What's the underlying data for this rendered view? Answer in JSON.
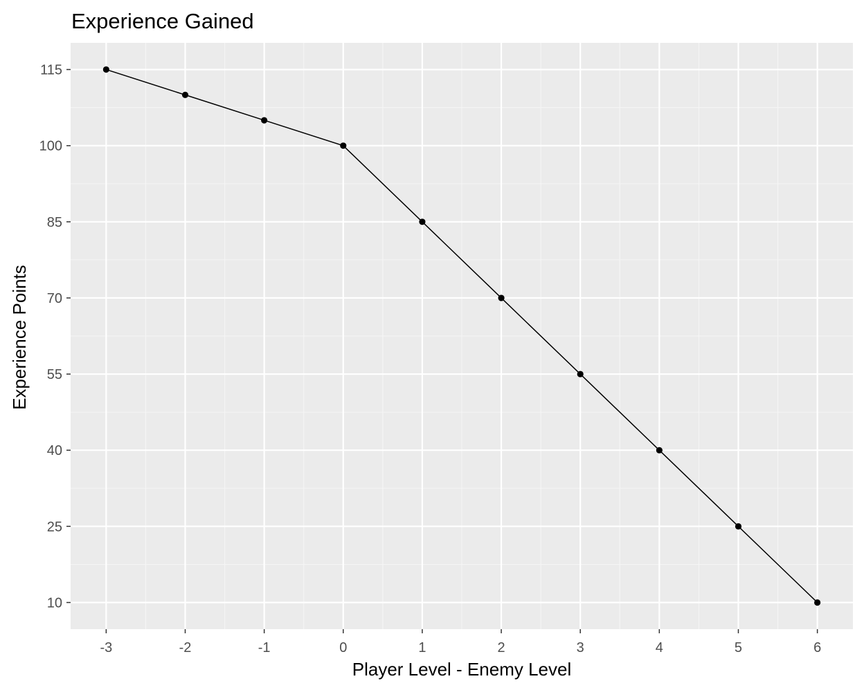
{
  "chart_data": {
    "type": "line",
    "title": "Experience Gained",
    "xlabel": "Player Level - Enemy Level",
    "ylabel": "Experience Points",
    "x": [
      -3,
      -2,
      -1,
      0,
      1,
      2,
      3,
      4,
      5,
      6
    ],
    "series": [
      {
        "values": [
          115,
          110,
          105,
          100,
          85,
          70,
          55,
          40,
          25,
          10
        ]
      }
    ],
    "xticks": [
      "-3",
      "-2",
      "-1",
      "0",
      "1",
      "2",
      "3",
      "4",
      "5",
      "6"
    ],
    "yticks": [
      "10",
      "25",
      "40",
      "55",
      "70",
      "85",
      "100",
      "115"
    ],
    "xlim": [
      -3.45,
      6.45
    ],
    "ylim": [
      4.75,
      120.25
    ],
    "grid": true,
    "markers": true,
    "colors": {
      "panel_background": "#ebebeb",
      "grid_major": "#ffffff",
      "grid_minor": "#f5f5f5",
      "line": "#000000",
      "point": "#000000",
      "tick_text": "#4d4d4d",
      "tick_mark": "#333333"
    }
  }
}
